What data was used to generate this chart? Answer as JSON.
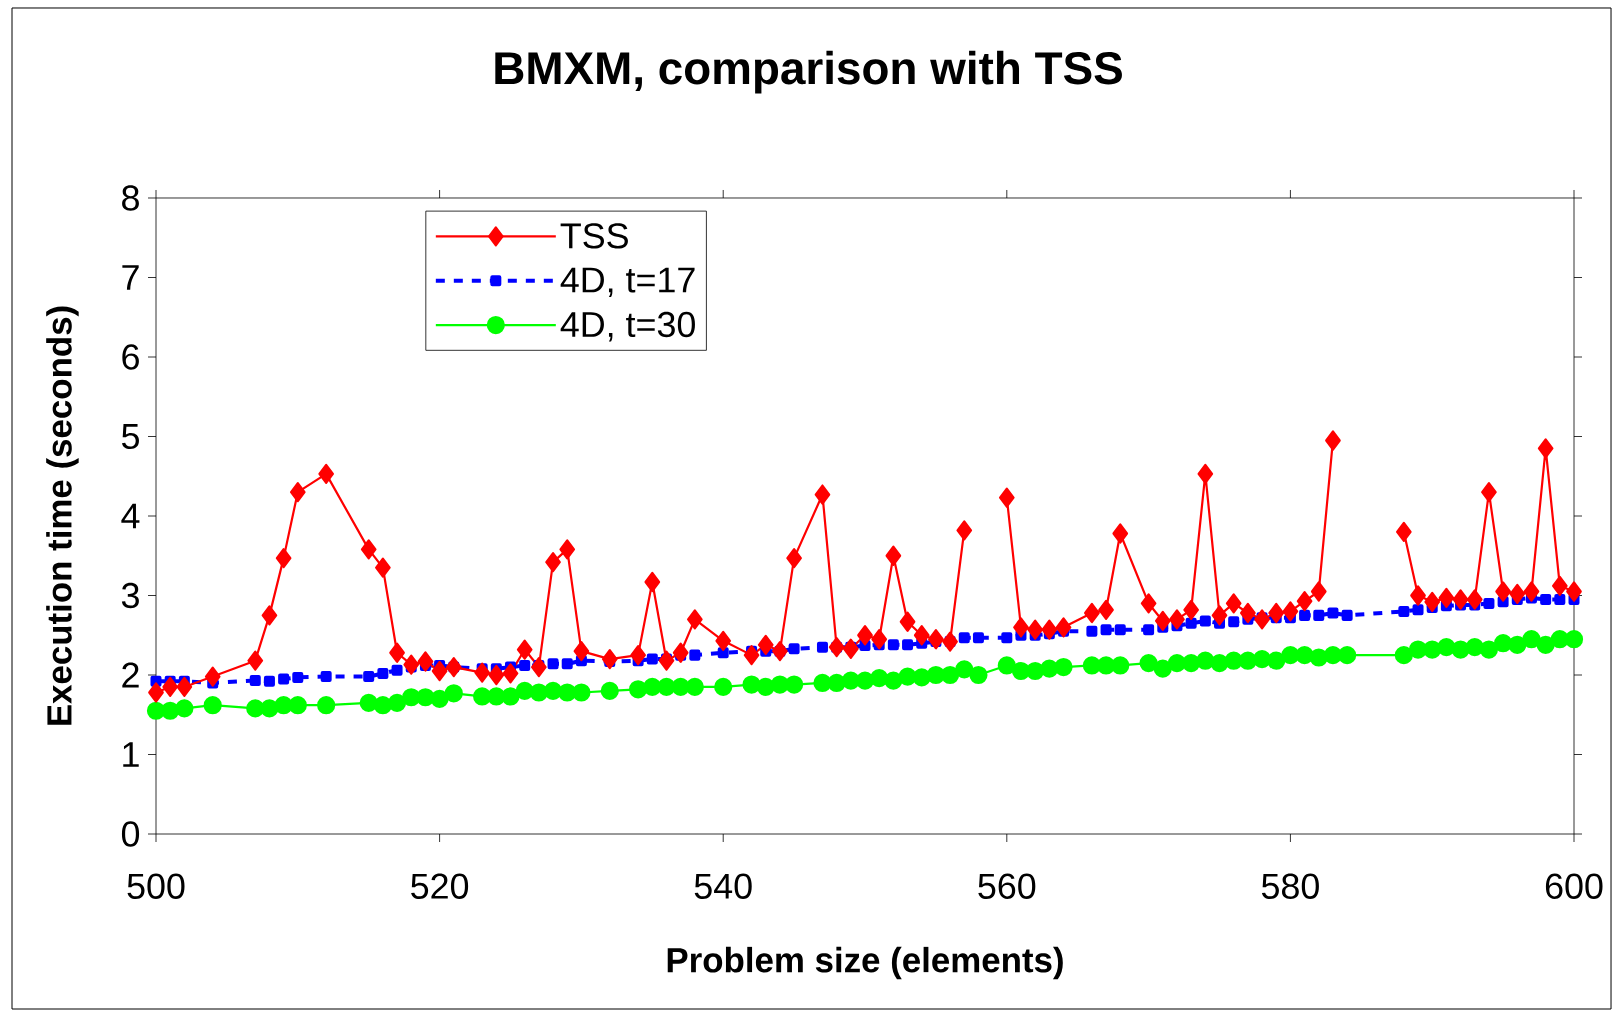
{
  "chart_data": {
    "type": "line",
    "title": "BMXM, comparison with TSS",
    "xlabel": "Problem size (elements)",
    "ylabel": "Execution time (seconds)",
    "xlim": [
      500,
      600
    ],
    "ylim": [
      0,
      8
    ],
    "xticks": [
      500,
      520,
      540,
      560,
      580,
      600
    ],
    "yticks": [
      0,
      1,
      2,
      3,
      4,
      5,
      6,
      7,
      8
    ],
    "legend": "top left",
    "series": [
      {
        "name": "TSS",
        "color": "#ff0000",
        "marker": "diamond",
        "line_style": "solid",
        "x": [
          500,
          501,
          502,
          504,
          507,
          508,
          509,
          510,
          512,
          515,
          516,
          517,
          518,
          519,
          520,
          521,
          523,
          524,
          525,
          526,
          527,
          528,
          529,
          530,
          532,
          534,
          535,
          536,
          537,
          538,
          540,
          542,
          543,
          544,
          545,
          547,
          548,
          549,
          550,
          551,
          552,
          553,
          554,
          555,
          556,
          557,
          558,
          559,
          560,
          561,
          562,
          563,
          564,
          566,
          567,
          568,
          570,
          571,
          572,
          573,
          574,
          575,
          576,
          577,
          578,
          579,
          580,
          581,
          582,
          583,
          584,
          587,
          588,
          589,
          590,
          591,
          592,
          593,
          594,
          595,
          596,
          597,
          598,
          599,
          600
        ],
        "values": [
          1.78,
          1.85,
          1.85,
          1.98,
          2.18,
          2.75,
          3.47,
          4.3,
          4.53,
          3.58,
          3.35,
          2.28,
          2.13,
          2.17,
          2.05,
          2.1,
          2.03,
          2.0,
          2.02,
          2.32,
          2.1,
          3.42,
          3.58,
          2.3,
          2.2,
          2.25,
          3.17,
          2.18,
          2.28,
          2.7,
          2.43,
          2.25,
          2.38,
          2.3,
          3.47,
          4.27,
          2.35,
          2.33,
          2.5,
          2.45,
          3.5,
          2.67,
          2.5,
          2.45,
          2.42,
          3.82,
          null,
          null,
          4.23,
          2.6,
          2.57,
          2.57,
          2.6,
          2.78,
          2.82,
          3.78,
          2.9,
          2.68,
          2.7,
          2.82,
          4.53,
          2.75,
          2.9,
          2.78,
          2.7,
          2.78,
          2.8,
          2.93,
          3.05,
          4.95,
          null,
          null,
          3.8,
          3.0,
          2.92,
          2.97,
          2.95,
          2.95,
          4.3,
          3.05,
          3.02,
          3.05,
          4.85,
          3.12,
          3.05
        ]
      },
      {
        "name": "4D, t=17",
        "color": "#0000ff",
        "marker": "square",
        "line_style": "dashed",
        "x": [
          500,
          501,
          502,
          504,
          507,
          508,
          509,
          510,
          512,
          515,
          516,
          517,
          518,
          519,
          520,
          521,
          523,
          524,
          525,
          526,
          527,
          528,
          529,
          530,
          532,
          534,
          535,
          536,
          537,
          538,
          540,
          542,
          543,
          544,
          545,
          547,
          548,
          549,
          550,
          551,
          552,
          553,
          554,
          555,
          556,
          557,
          558,
          560,
          561,
          562,
          563,
          564,
          566,
          567,
          568,
          570,
          571,
          572,
          573,
          574,
          575,
          576,
          577,
          578,
          579,
          580,
          581,
          582,
          583,
          584,
          588,
          589,
          590,
          591,
          592,
          593,
          594,
          595,
          596,
          597,
          598,
          599,
          600
        ],
        "values": [
          1.92,
          1.92,
          1.92,
          1.9,
          1.93,
          1.92,
          1.95,
          1.97,
          1.98,
          1.98,
          2.02,
          2.06,
          2.1,
          2.12,
          2.12,
          2.1,
          2.08,
          2.08,
          2.1,
          2.12,
          2.12,
          2.14,
          2.14,
          2.18,
          2.17,
          2.18,
          2.2,
          2.2,
          2.25,
          2.25,
          2.28,
          2.3,
          2.3,
          2.3,
          2.33,
          2.35,
          2.35,
          2.35,
          2.37,
          2.38,
          2.38,
          2.38,
          2.4,
          2.42,
          2.42,
          2.47,
          2.47,
          2.47,
          2.5,
          2.5,
          2.52,
          2.55,
          2.55,
          2.57,
          2.57,
          2.57,
          2.6,
          2.62,
          2.65,
          2.68,
          2.65,
          2.67,
          2.7,
          2.72,
          2.72,
          2.72,
          2.75,
          2.75,
          2.78,
          2.75,
          2.8,
          2.82,
          2.85,
          2.87,
          2.88,
          2.88,
          2.9,
          2.92,
          2.95,
          2.97,
          2.95,
          2.95,
          2.95
        ]
      },
      {
        "name": "4D, t=30",
        "color": "#00ff00",
        "marker": "circle",
        "line_style": "solid",
        "x": [
          500,
          501,
          502,
          504,
          507,
          508,
          509,
          510,
          512,
          515,
          516,
          517,
          518,
          519,
          520,
          521,
          523,
          524,
          525,
          526,
          527,
          528,
          529,
          530,
          532,
          534,
          535,
          536,
          537,
          538,
          540,
          542,
          543,
          544,
          545,
          547,
          548,
          549,
          550,
          551,
          552,
          553,
          554,
          555,
          556,
          557,
          558,
          560,
          561,
          562,
          563,
          564,
          566,
          567,
          568,
          570,
          571,
          572,
          573,
          574,
          575,
          576,
          577,
          578,
          579,
          580,
          581,
          582,
          583,
          584,
          588,
          589,
          590,
          591,
          592,
          593,
          594,
          595,
          596,
          597,
          598,
          599,
          600
        ],
        "values": [
          1.55,
          1.55,
          1.58,
          1.62,
          1.58,
          1.58,
          1.62,
          1.62,
          1.62,
          1.65,
          1.62,
          1.65,
          1.72,
          1.72,
          1.7,
          1.77,
          1.73,
          1.73,
          1.73,
          1.8,
          1.78,
          1.8,
          1.78,
          1.78,
          1.8,
          1.82,
          1.85,
          1.85,
          1.85,
          1.85,
          1.85,
          1.88,
          1.85,
          1.88,
          1.88,
          1.9,
          1.9,
          1.93,
          1.93,
          1.96,
          1.93,
          1.98,
          1.97,
          2.0,
          2.0,
          2.07,
          2.0,
          2.12,
          2.05,
          2.05,
          2.08,
          2.1,
          2.12,
          2.12,
          2.12,
          2.15,
          2.08,
          2.15,
          2.15,
          2.18,
          2.15,
          2.18,
          2.18,
          2.2,
          2.18,
          2.25,
          2.25,
          2.22,
          2.25,
          2.25,
          2.25,
          2.32,
          2.32,
          2.35,
          2.32,
          2.35,
          2.32,
          2.4,
          2.38,
          2.45,
          2.38,
          2.45,
          2.45
        ]
      }
    ]
  }
}
